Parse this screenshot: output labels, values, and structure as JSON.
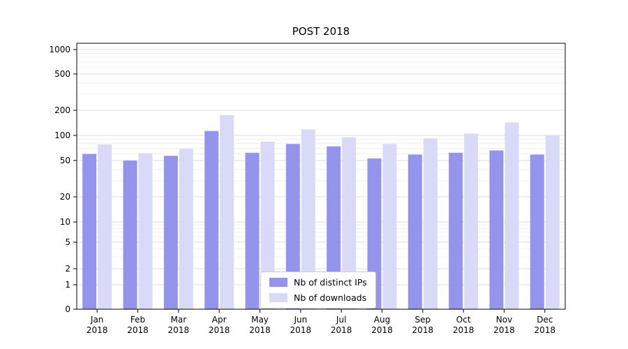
{
  "colors": {
    "grid_major": "#dcdcdc",
    "grid_minor": "#f0f0f0",
    "axis": "#000000",
    "background": "#ffffff"
  },
  "chart_data": {
    "type": "bar",
    "title": "POST 2018",
    "xlabel": "",
    "ylabel": "",
    "yscale": "symlog",
    "ylim": [
      0,
      1000
    ],
    "yticks": [
      0,
      1,
      2,
      5,
      10,
      20,
      50,
      100,
      200,
      500,
      1000
    ],
    "grid": true,
    "legend_position": "lower center",
    "categories": [
      "Jan 2018",
      "Feb 2018",
      "Mar 2018",
      "Apr 2018",
      "May 2018",
      "Jun 2018",
      "Jul 2018",
      "Aug 2018",
      "Sep 2018",
      "Oct 2018",
      "Nov 2018",
      "Dec 2018"
    ],
    "series": [
      {
        "name": "Nb of distinct IPs",
        "color": "#9494ec",
        "values": [
          60,
          50,
          57,
          113,
          62,
          79,
          74,
          53,
          59,
          62,
          66,
          59
        ]
      },
      {
        "name": "Nb of downloads",
        "color": "#d9d9f8",
        "values": [
          78,
          61,
          69,
          175,
          84,
          118,
          95,
          79,
          92,
          105,
          143,
          100
        ]
      }
    ]
  }
}
